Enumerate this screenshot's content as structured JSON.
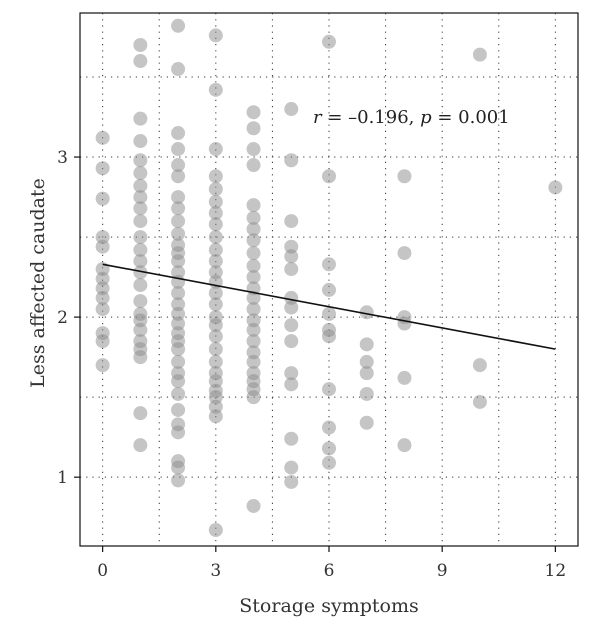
{
  "chart_data": {
    "type": "scatter",
    "xlabel": "Storage symptoms",
    "ylabel": "Less affected caudate",
    "xlim": [
      -0.6,
      12.6
    ],
    "ylim": [
      0.57,
      3.9
    ],
    "xticks": [
      0,
      3,
      6,
      9,
      12
    ],
    "yticks": [
      1,
      2,
      3
    ],
    "xtick_labels": [
      "0",
      "3",
      "6",
      "9",
      "12"
    ],
    "ytick_labels": [
      "1",
      "2",
      "3"
    ],
    "x_minor_grid": [
      0,
      1.5,
      3,
      4.5,
      6,
      7.5,
      9,
      10.5,
      12
    ],
    "y_minor_grid": [
      1,
      1.5,
      2,
      2.5,
      3,
      3.5
    ],
    "grid": "dotted",
    "annotation": {
      "r_symbol": "r",
      "r_text": " = –0.196, ",
      "p_symbol": "p",
      "p_text": " = 0.001"
    },
    "regression": {
      "x": [
        0,
        12
      ],
      "y": [
        2.33,
        1.8
      ]
    },
    "point_color": "#8c8c8c",
    "line_color": "#111111",
    "points": [
      {
        "x": 0,
        "y": 3.12
      },
      {
        "x": 0,
        "y": 2.93
      },
      {
        "x": 0,
        "y": 2.74
      },
      {
        "x": 0,
        "y": 2.5
      },
      {
        "x": 0,
        "y": 2.44
      },
      {
        "x": 0,
        "y": 2.3
      },
      {
        "x": 0,
        "y": 2.24
      },
      {
        "x": 0,
        "y": 2.18
      },
      {
        "x": 0,
        "y": 2.12
      },
      {
        "x": 0,
        "y": 2.05
      },
      {
        "x": 0,
        "y": 1.9
      },
      {
        "x": 0,
        "y": 1.85
      },
      {
        "x": 0,
        "y": 1.7
      },
      {
        "x": 1,
        "y": 3.7
      },
      {
        "x": 1,
        "y": 3.6
      },
      {
        "x": 1,
        "y": 3.24
      },
      {
        "x": 1,
        "y": 3.1
      },
      {
        "x": 1,
        "y": 2.98
      },
      {
        "x": 1,
        "y": 2.9
      },
      {
        "x": 1,
        "y": 2.82
      },
      {
        "x": 1,
        "y": 2.75
      },
      {
        "x": 1,
        "y": 2.68
      },
      {
        "x": 1,
        "y": 2.6
      },
      {
        "x": 1,
        "y": 2.5
      },
      {
        "x": 1,
        "y": 2.42
      },
      {
        "x": 1,
        "y": 2.35
      },
      {
        "x": 1,
        "y": 2.28
      },
      {
        "x": 1,
        "y": 2.2
      },
      {
        "x": 1,
        "y": 2.1
      },
      {
        "x": 1,
        "y": 2.02
      },
      {
        "x": 1,
        "y": 1.98
      },
      {
        "x": 1,
        "y": 1.92
      },
      {
        "x": 1,
        "y": 1.85
      },
      {
        "x": 1,
        "y": 1.8
      },
      {
        "x": 1,
        "y": 1.75
      },
      {
        "x": 1,
        "y": 1.4
      },
      {
        "x": 1,
        "y": 1.2
      },
      {
        "x": 2,
        "y": 3.82
      },
      {
        "x": 2,
        "y": 3.55
      },
      {
        "x": 2,
        "y": 3.15
      },
      {
        "x": 2,
        "y": 3.05
      },
      {
        "x": 2,
        "y": 2.95
      },
      {
        "x": 2,
        "y": 2.88
      },
      {
        "x": 2,
        "y": 2.75
      },
      {
        "x": 2,
        "y": 2.68
      },
      {
        "x": 2,
        "y": 2.6
      },
      {
        "x": 2,
        "y": 2.52
      },
      {
        "x": 2,
        "y": 2.45
      },
      {
        "x": 2,
        "y": 2.4
      },
      {
        "x": 2,
        "y": 2.35
      },
      {
        "x": 2,
        "y": 2.28
      },
      {
        "x": 2,
        "y": 2.22
      },
      {
        "x": 2,
        "y": 2.15
      },
      {
        "x": 2,
        "y": 2.08
      },
      {
        "x": 2,
        "y": 2.02
      },
      {
        "x": 2,
        "y": 1.96
      },
      {
        "x": 2,
        "y": 1.9
      },
      {
        "x": 2,
        "y": 1.85
      },
      {
        "x": 2,
        "y": 1.8
      },
      {
        "x": 2,
        "y": 1.72
      },
      {
        "x": 2,
        "y": 1.65
      },
      {
        "x": 2,
        "y": 1.6
      },
      {
        "x": 2,
        "y": 1.52
      },
      {
        "x": 2,
        "y": 1.42
      },
      {
        "x": 2,
        "y": 1.33
      },
      {
        "x": 2,
        "y": 1.28
      },
      {
        "x": 2,
        "y": 1.1
      },
      {
        "x": 2,
        "y": 1.06
      },
      {
        "x": 2,
        "y": 0.98
      },
      {
        "x": 3,
        "y": 3.76
      },
      {
        "x": 3,
        "y": 3.42
      },
      {
        "x": 3,
        "y": 3.05
      },
      {
        "x": 3,
        "y": 2.88
      },
      {
        "x": 3,
        "y": 2.8
      },
      {
        "x": 3,
        "y": 2.72
      },
      {
        "x": 3,
        "y": 2.65
      },
      {
        "x": 3,
        "y": 2.58
      },
      {
        "x": 3,
        "y": 2.5
      },
      {
        "x": 3,
        "y": 2.42
      },
      {
        "x": 3,
        "y": 2.35
      },
      {
        "x": 3,
        "y": 2.28
      },
      {
        "x": 3,
        "y": 2.22
      },
      {
        "x": 3,
        "y": 2.15
      },
      {
        "x": 3,
        "y": 2.08
      },
      {
        "x": 3,
        "y": 2.0
      },
      {
        "x": 3,
        "y": 1.95
      },
      {
        "x": 3,
        "y": 1.88
      },
      {
        "x": 3,
        "y": 1.8
      },
      {
        "x": 3,
        "y": 1.72
      },
      {
        "x": 3,
        "y": 1.65
      },
      {
        "x": 3,
        "y": 1.6
      },
      {
        "x": 3,
        "y": 1.54
      },
      {
        "x": 3,
        "y": 1.5
      },
      {
        "x": 3,
        "y": 1.44
      },
      {
        "x": 3,
        "y": 1.38
      },
      {
        "x": 3,
        "y": 0.67
      },
      {
        "x": 4,
        "y": 3.28
      },
      {
        "x": 4,
        "y": 3.18
      },
      {
        "x": 4,
        "y": 3.05
      },
      {
        "x": 4,
        "y": 2.95
      },
      {
        "x": 4,
        "y": 2.7
      },
      {
        "x": 4,
        "y": 2.62
      },
      {
        "x": 4,
        "y": 2.55
      },
      {
        "x": 4,
        "y": 2.48
      },
      {
        "x": 4,
        "y": 2.4
      },
      {
        "x": 4,
        "y": 2.32
      },
      {
        "x": 4,
        "y": 2.25
      },
      {
        "x": 4,
        "y": 2.18
      },
      {
        "x": 4,
        "y": 2.12
      },
      {
        "x": 4,
        "y": 2.05
      },
      {
        "x": 4,
        "y": 1.98
      },
      {
        "x": 4,
        "y": 1.92
      },
      {
        "x": 4,
        "y": 1.85
      },
      {
        "x": 4,
        "y": 1.78
      },
      {
        "x": 4,
        "y": 1.72
      },
      {
        "x": 4,
        "y": 1.65
      },
      {
        "x": 4,
        "y": 1.6
      },
      {
        "x": 4,
        "y": 1.55
      },
      {
        "x": 4,
        "y": 1.5
      },
      {
        "x": 4,
        "y": 0.82
      },
      {
        "x": 5,
        "y": 3.3
      },
      {
        "x": 5,
        "y": 2.98
      },
      {
        "x": 5,
        "y": 2.6
      },
      {
        "x": 5,
        "y": 2.44
      },
      {
        "x": 5,
        "y": 2.38
      },
      {
        "x": 5,
        "y": 2.3
      },
      {
        "x": 5,
        "y": 2.12
      },
      {
        "x": 5,
        "y": 2.06
      },
      {
        "x": 5,
        "y": 1.95
      },
      {
        "x": 5,
        "y": 1.85
      },
      {
        "x": 5,
        "y": 1.65
      },
      {
        "x": 5,
        "y": 1.58
      },
      {
        "x": 5,
        "y": 1.24
      },
      {
        "x": 5,
        "y": 1.06
      },
      {
        "x": 5,
        "y": 0.97
      },
      {
        "x": 6,
        "y": 3.72
      },
      {
        "x": 6,
        "y": 2.88
      },
      {
        "x": 6,
        "y": 2.33
      },
      {
        "x": 6,
        "y": 2.17
      },
      {
        "x": 6,
        "y": 2.02
      },
      {
        "x": 6,
        "y": 1.92
      },
      {
        "x": 6,
        "y": 1.88
      },
      {
        "x": 6,
        "y": 1.55
      },
      {
        "x": 6,
        "y": 1.31
      },
      {
        "x": 6,
        "y": 1.18
      },
      {
        "x": 6,
        "y": 1.09
      },
      {
        "x": 7,
        "y": 2.03
      },
      {
        "x": 7,
        "y": 1.83
      },
      {
        "x": 7,
        "y": 1.72
      },
      {
        "x": 7,
        "y": 1.65
      },
      {
        "x": 7,
        "y": 1.52
      },
      {
        "x": 7,
        "y": 1.34
      },
      {
        "x": 8,
        "y": 2.88
      },
      {
        "x": 8,
        "y": 2.4
      },
      {
        "x": 8,
        "y": 2.0
      },
      {
        "x": 8,
        "y": 1.96
      },
      {
        "x": 8,
        "y": 1.62
      },
      {
        "x": 8,
        "y": 1.2
      },
      {
        "x": 10,
        "y": 3.64
      },
      {
        "x": 10,
        "y": 1.7
      },
      {
        "x": 10,
        "y": 1.47
      },
      {
        "x": 12,
        "y": 2.81
      }
    ]
  }
}
